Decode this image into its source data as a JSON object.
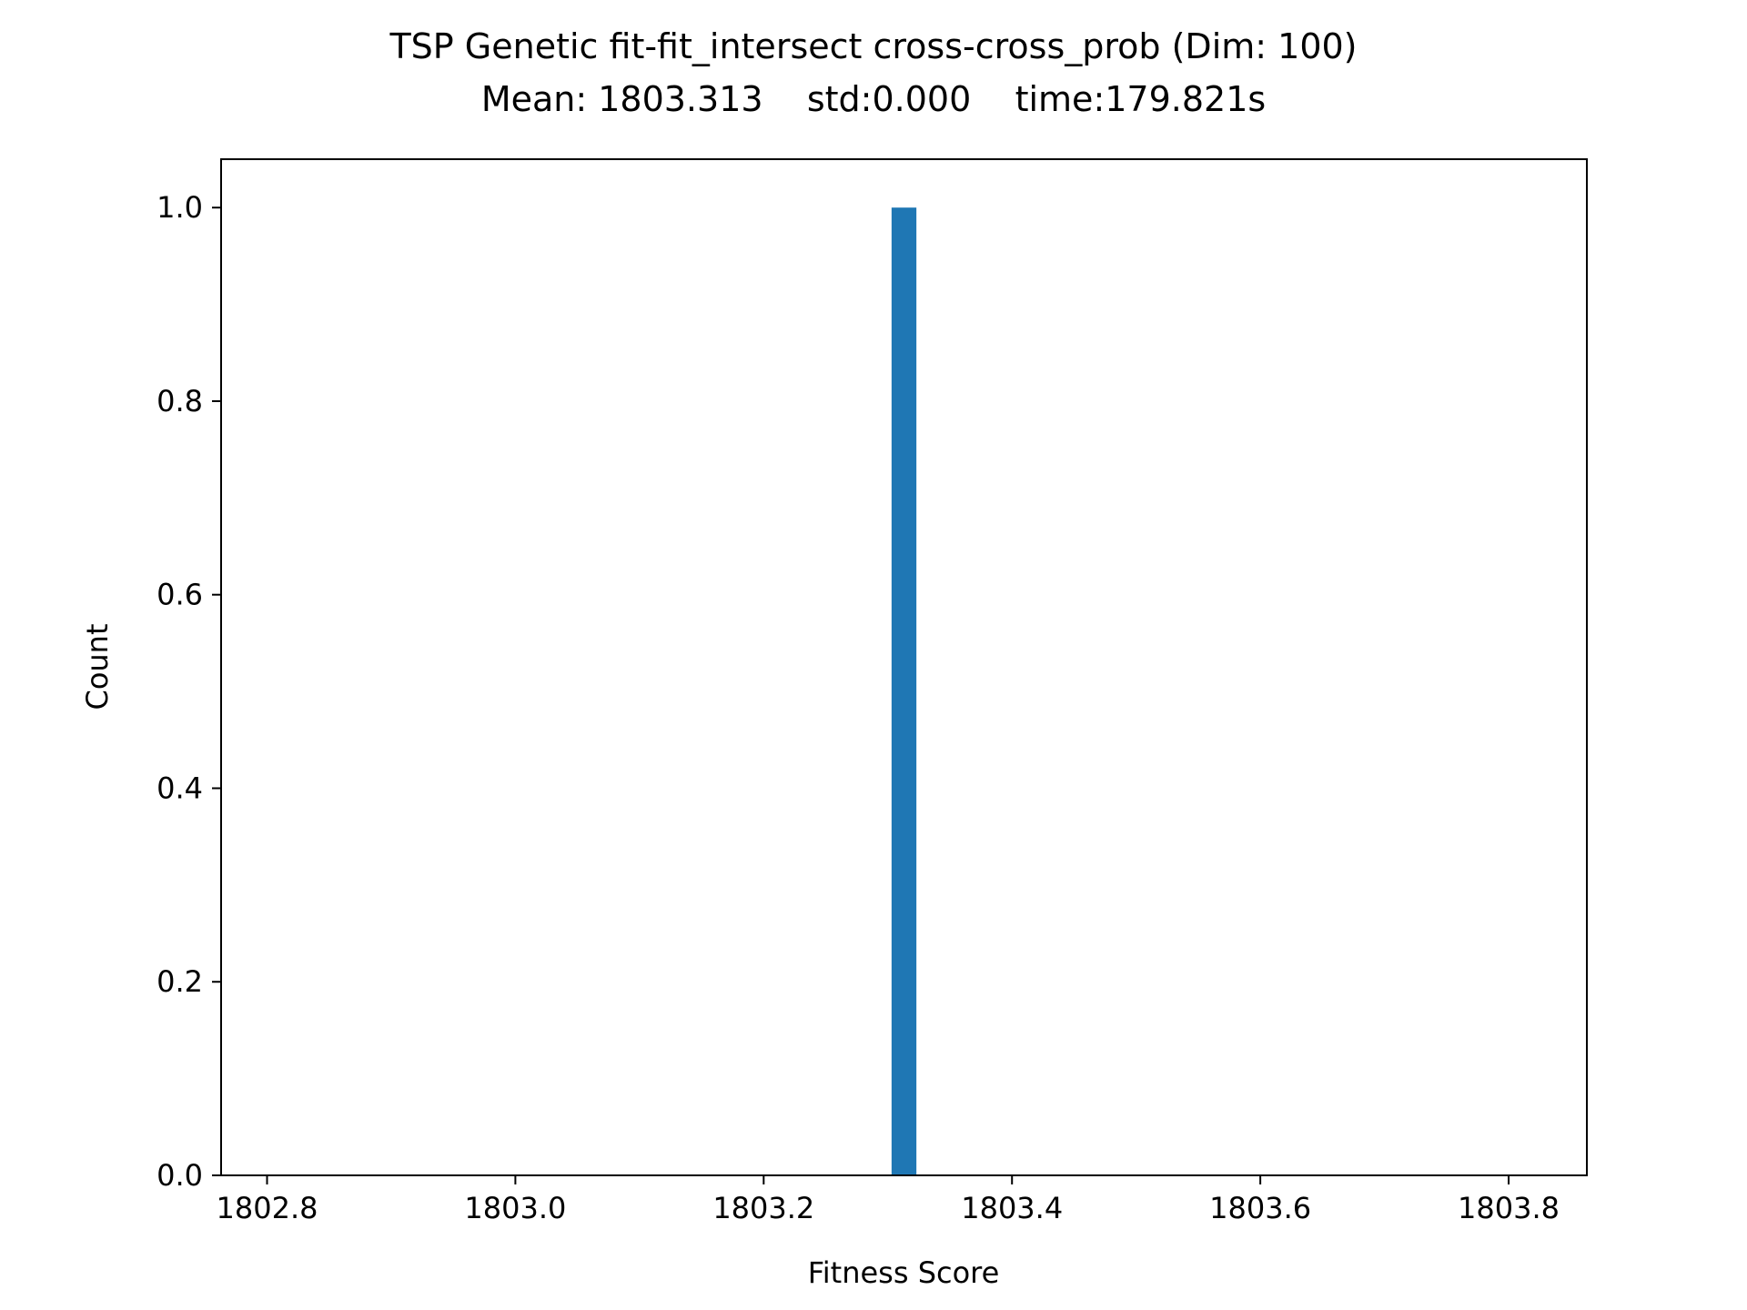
{
  "chart_data": {
    "type": "bar",
    "title_line1": "TSP Genetic fit-fit_intersect cross-cross_prob (Dim: 100)",
    "title_line2": "Mean: 1803.313    std:0.000    time:179.821s",
    "xlabel": "Fitness Score",
    "ylabel": "Count",
    "xlim": [
      1802.763,
      1803.863
    ],
    "ylim": [
      0,
      1.05
    ],
    "xticks": [
      "1802.8",
      "1803.0",
      "1803.2",
      "1803.4",
      "1803.6",
      "1803.8"
    ],
    "xtick_values": [
      1802.8,
      1803.0,
      1803.2,
      1803.4,
      1803.6,
      1803.8
    ],
    "yticks": [
      "0.0",
      "0.2",
      "0.4",
      "0.6",
      "0.8",
      "1.0"
    ],
    "ytick_values": [
      0.0,
      0.2,
      0.4,
      0.6,
      0.8,
      1.0
    ],
    "bars": [
      {
        "x_start": 1803.303,
        "x_end": 1803.323,
        "value": 1
      }
    ],
    "bar_color": "#1f77b4",
    "grid": false,
    "legend": "none"
  }
}
